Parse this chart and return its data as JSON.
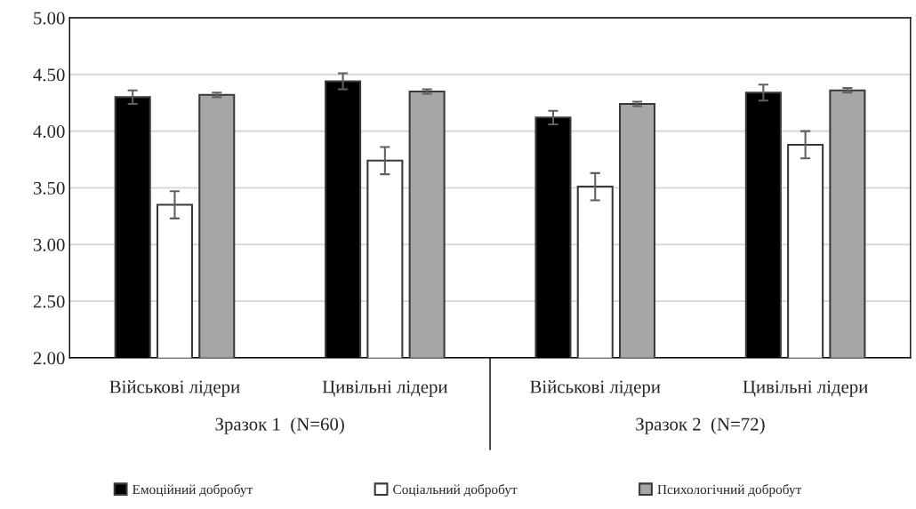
{
  "chart_data": {
    "type": "bar",
    "categories": [
      "Військові лідери",
      "Цивільні лідери",
      "Військові лідери",
      "Цивільні лідери"
    ],
    "series": [
      {
        "name": "Емоційний добробут",
        "color": "#000000",
        "values": [
          4.3,
          4.44,
          4.12,
          4.34
        ],
        "errors": [
          0.06,
          0.07,
          0.06,
          0.07
        ]
      },
      {
        "name": "Соціальний добробут",
        "color": "#ffffff",
        "values": [
          3.35,
          3.74,
          3.51,
          3.88
        ],
        "errors": [
          0.12,
          0.12,
          0.12,
          0.12
        ]
      },
      {
        "name": "Психологічний добробут",
        "color": "#a6a6a6",
        "values": [
          4.32,
          4.35,
          4.24,
          4.36
        ],
        "errors": [
          0.02,
          0.02,
          0.02,
          0.02
        ]
      }
    ],
    "annotations": [
      "Зразок 1  (N=60)",
      "Зразок 2  (N=72)"
    ],
    "ylim": [
      2.0,
      5.0
    ],
    "yticks": [
      {
        "value": 2.0,
        "label": "2.00"
      },
      {
        "value": 2.5,
        "label": "2.50"
      },
      {
        "value": 3.0,
        "label": "3.00"
      },
      {
        "value": 3.5,
        "label": "3.50"
      },
      {
        "value": 4.0,
        "label": "4.00"
      },
      {
        "value": 4.5,
        "label": "4.50"
      },
      {
        "value": 5.0,
        "label": "5.00"
      }
    ],
    "grid": "y",
    "legend": "bottom"
  }
}
